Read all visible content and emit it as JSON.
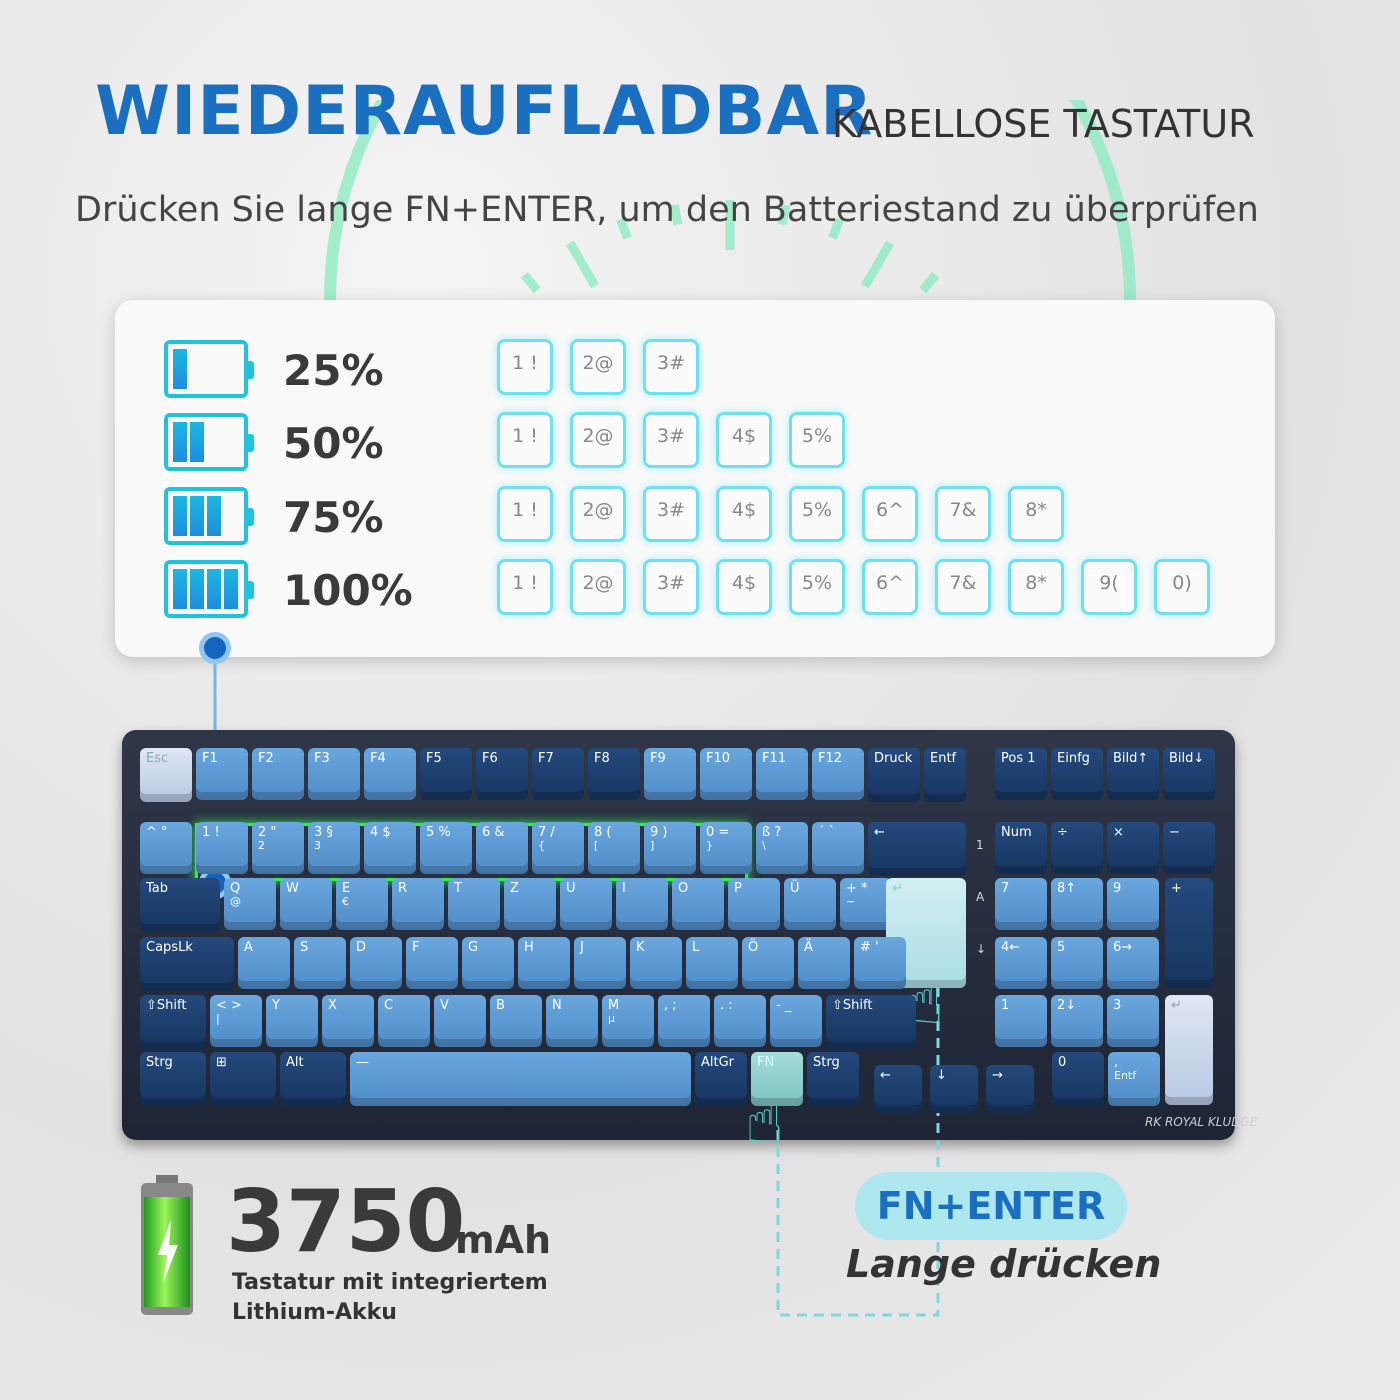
{
  "header": {
    "title": "WIEDERAUFLADBAR",
    "title_suffix": "KABELLOSE TASTATUR",
    "subtitle": "Drücken Sie lange FN+ENTER, um den Batteriestand zu überprüfen"
  },
  "battery_levels": [
    {
      "label": "25%",
      "level": 0.25,
      "keys": [
        "1 !",
        "2@",
        "3#"
      ]
    },
    {
      "label": "50%",
      "level": 0.5,
      "keys": [
        "1 !",
        "2@",
        "3#",
        "4$",
        "5%"
      ]
    },
    {
      "label": "75%",
      "level": 0.75,
      "keys": [
        "1 !",
        "2@",
        "3#",
        "4$",
        "5%",
        "6^",
        "7&",
        "8*"
      ]
    },
    {
      "label": "100%",
      "level": 1.0,
      "keys": [
        "1 !",
        "2@",
        "3#",
        "4$",
        "5%",
        "6^",
        "7&",
        "8*",
        "9(",
        "0)"
      ]
    }
  ],
  "colors": {
    "accent": "#1a6fc0",
    "indicator": "#1fc3dc",
    "highlight": "#2cf04c",
    "pill": "#aee8ee"
  },
  "keyboard": {
    "rows": [
      [
        [
          "Esc"
        ],
        [
          "F1"
        ],
        [
          "F2"
        ],
        [
          "F3"
        ],
        [
          "F4"
        ],
        [
          "F5"
        ],
        [
          "F6"
        ],
        [
          "F7"
        ],
        [
          "F8"
        ],
        [
          "F9"
        ],
        [
          "F10"
        ],
        [
          "F11"
        ],
        [
          "F12"
        ],
        [
          "Druck"
        ],
        [
          "Entf"
        ],
        [
          "Pos 1"
        ],
        [
          "Einfg"
        ],
        [
          "Bild↑"
        ],
        [
          "Bild↓"
        ]
      ],
      [
        [
          "^ °"
        ],
        [
          "1 !"
        ],
        [
          "2 \"",
          "2"
        ],
        [
          "3 §",
          "3"
        ],
        [
          "4 $"
        ],
        [
          "5 %"
        ],
        [
          "6 &"
        ],
        [
          "7 /",
          "{"
        ],
        [
          "8 (",
          "["
        ],
        [
          "9 )",
          "]"
        ],
        [
          "0 =",
          "}"
        ],
        [
          "ß ?",
          "\\"
        ],
        [
          "´ `"
        ],
        [
          "←"
        ],
        [
          "Num"
        ],
        [
          "÷"
        ],
        [
          "×"
        ],
        [
          "−"
        ]
      ],
      [
        [
          "Tab"
        ],
        [
          "Q",
          "@"
        ],
        [
          "W"
        ],
        [
          "E",
          "€"
        ],
        [
          "R"
        ],
        [
          "T"
        ],
        [
          "Z"
        ],
        [
          "U"
        ],
        [
          "I"
        ],
        [
          "O"
        ],
        [
          "P"
        ],
        [
          "Ü"
        ],
        [
          "+ *",
          "~"
        ],
        [
          "↵"
        ],
        [
          "7"
        ],
        [
          "8↑"
        ],
        [
          "9"
        ],
        [
          "+"
        ]
      ],
      [
        [
          "CapsLk"
        ],
        [
          "A"
        ],
        [
          "S"
        ],
        [
          "D"
        ],
        [
          "F"
        ],
        [
          "G"
        ],
        [
          "H"
        ],
        [
          "J"
        ],
        [
          "K"
        ],
        [
          "L"
        ],
        [
          "Ö"
        ],
        [
          "Ä"
        ],
        [
          "# '"
        ],
        [
          "4←"
        ],
        [
          "5"
        ],
        [
          "6→"
        ]
      ],
      [
        [
          "⇧Shift"
        ],
        [
          "< >",
          "|"
        ],
        [
          "Y"
        ],
        [
          "X"
        ],
        [
          "C"
        ],
        [
          "V"
        ],
        [
          "B"
        ],
        [
          "N"
        ],
        [
          "M",
          "µ"
        ],
        [
          ", ;"
        ],
        [
          ". :"
        ],
        [
          "- _"
        ],
        [
          "⇧Shift"
        ],
        [
          "1"
        ],
        [
          "2↓"
        ],
        [
          "3"
        ],
        [
          "↵"
        ]
      ],
      [
        [
          "Strg"
        ],
        [
          "⊞"
        ],
        [
          "Alt"
        ],
        [
          "—"
        ],
        [
          "AltGr"
        ],
        [
          "FN"
        ],
        [
          "Strg"
        ],
        [
          "←"
        ],
        [
          "↓"
        ],
        [
          "→"
        ],
        [
          "0"
        ],
        [
          ",",
          "Entf"
        ]
      ]
    ],
    "side_indicators": [
      "1",
      "A",
      "↓"
    ],
    "logo": "RK ROYAL KLUDGE"
  },
  "capacity": {
    "value": "3750",
    "unit": "mAh",
    "description": "Tastatur mit integriertem Lithium-Akku"
  },
  "instruction": {
    "keys": "FN+ENTER",
    "action": "Lange drücken"
  }
}
